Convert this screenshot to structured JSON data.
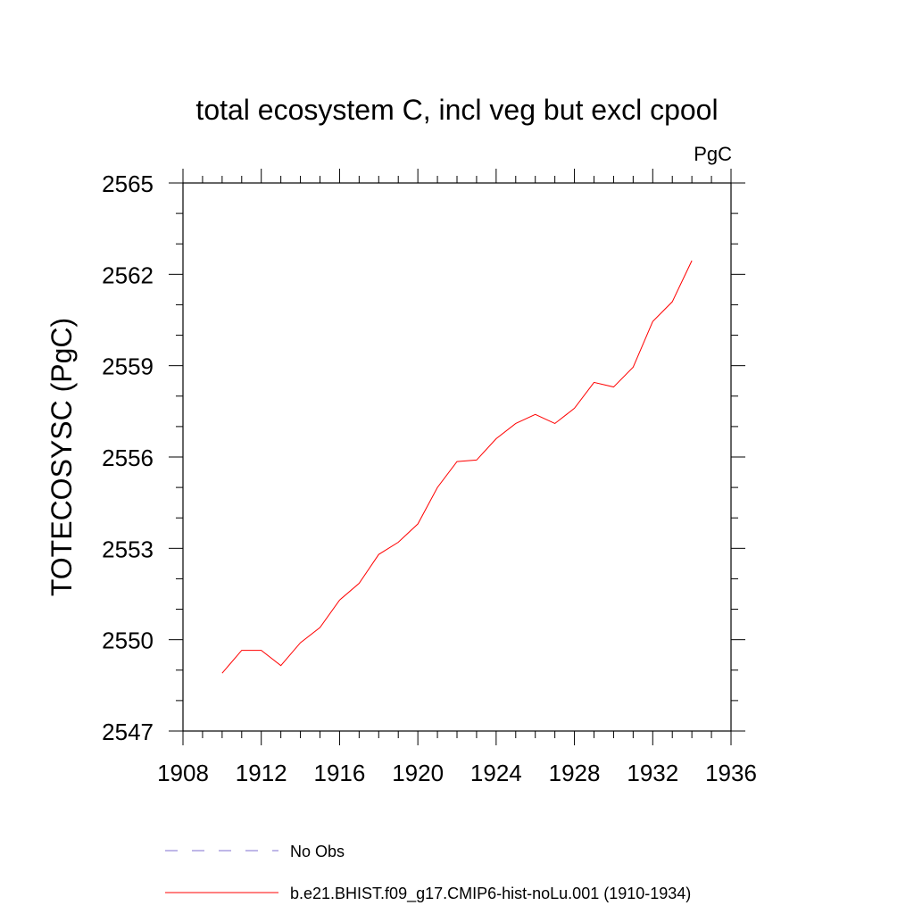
{
  "chart_data": {
    "type": "line",
    "title": "total ecosystem C, incl veg but excl cpool",
    "units_label": "PgC",
    "ylabel": "TOTECOSYSC  (PgC)",
    "xlabel": "",
    "xlim": [
      1908,
      1936
    ],
    "ylim": [
      2547,
      2565
    ],
    "x_ticks": [
      1908,
      1912,
      1916,
      1920,
      1924,
      1928,
      1932,
      1936
    ],
    "y_ticks": [
      2547,
      2550,
      2553,
      2556,
      2559,
      2562,
      2565
    ],
    "x_minor_step": 1,
    "y_minor_step": 1,
    "grid": false,
    "legend_position": "bottom",
    "series": [
      {
        "name": "b.e21.BHIST.f09_g17.CMIP6-hist-noLu.001 (1910-1934)",
        "color": "#ff0000",
        "style": "solid",
        "x": [
          1910,
          1911,
          1912,
          1913,
          1914,
          1915,
          1916,
          1917,
          1918,
          1919,
          1920,
          1921,
          1922,
          1923,
          1924,
          1925,
          1926,
          1927,
          1928,
          1929,
          1930,
          1931,
          1932,
          1933,
          1934
        ],
        "y": [
          2548.9,
          2549.65,
          2549.65,
          2549.15,
          2549.9,
          2550.4,
          2551.3,
          2551.85,
          2552.8,
          2553.2,
          2553.8,
          2555.0,
          2555.85,
          2555.9,
          2556.6,
          2557.1,
          2557.4,
          2557.1,
          2557.6,
          2558.45,
          2558.3,
          2558.95,
          2560.45,
          2561.1,
          2562.45
        ]
      }
    ],
    "legend": [
      {
        "label": "No Obs",
        "color": "#7f6fd0",
        "style": "dashed"
      },
      {
        "label": "b.e21.BHIST.f09_g17.CMIP6-hist-noLu.001 (1910-1934)",
        "color": "#ff0000",
        "style": "solid"
      }
    ]
  }
}
